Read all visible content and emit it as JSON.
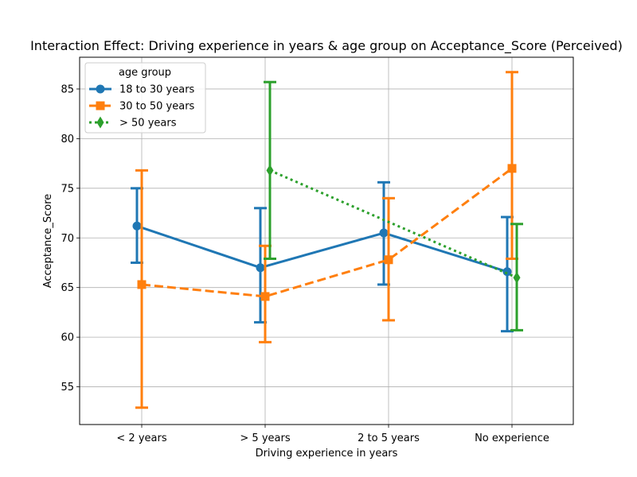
{
  "chart_data": {
    "type": "line",
    "title": "Interaction Effect: Driving experience in years & age group on Acceptance_Score (Perceived)",
    "xlabel": "Driving experience in years",
    "ylabel": "Acceptance_Score",
    "categories": [
      "< 2 years",
      "> 5 years",
      "2 to 5 years",
      "No experience"
    ],
    "ylim": [
      51.2,
      88.2
    ],
    "yticks": [
      55,
      60,
      65,
      70,
      75,
      80,
      85
    ],
    "grid": true,
    "legend": {
      "title": "age group",
      "placement": "top-left"
    },
    "series": [
      {
        "name": "18 to 30 years",
        "color": "#1f77b4",
        "marker": "circle",
        "linestyle": "solid",
        "values": [
          71.2,
          67.0,
          70.5,
          66.6
        ],
        "ci_low": [
          67.5,
          61.5,
          65.3,
          60.6
        ],
        "ci_high": [
          75.0,
          73.0,
          75.6,
          72.1
        ]
      },
      {
        "name": "30 to 50 years",
        "color": "#ff7f0e",
        "marker": "square",
        "linestyle": "dashed",
        "values": [
          65.3,
          64.1,
          67.8,
          77.0
        ],
        "ci_low": [
          52.9,
          59.5,
          61.7,
          67.9
        ],
        "ci_high": [
          76.8,
          69.2,
          74.0,
          86.7
        ]
      },
      {
        "name": "> 50 years",
        "color": "#2ca02c",
        "marker": "diamond",
        "linestyle": "dotted",
        "values": [
          null,
          76.8,
          null,
          66.0
        ],
        "ci_low": [
          null,
          67.9,
          null,
          60.7
        ],
        "ci_high": [
          null,
          85.7,
          null,
          71.4
        ]
      }
    ]
  }
}
